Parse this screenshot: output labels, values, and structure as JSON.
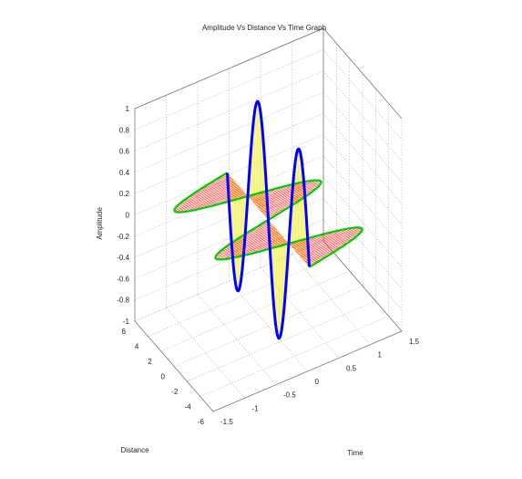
{
  "chart_data": {
    "type": "line",
    "title": "Amplitude Vs Distance Vs Time Graph",
    "xlabel": "Distance",
    "ylabel": "Time",
    "zlabel": "Amplitude",
    "xlim": [
      -6,
      6
    ],
    "ylim": [
      -1.5,
      1.5
    ],
    "zlim": [
      -1,
      1
    ],
    "x_ticks": [
      "6",
      "4",
      "2",
      "0",
      "-2",
      "-4",
      "-6"
    ],
    "y_ticks": [
      "-1.5",
      "-1",
      "-0.5",
      "0",
      "0.5",
      "1",
      "1.5"
    ],
    "z_ticks": [
      "1",
      "0.8",
      "0.6",
      "0.4",
      "0.2",
      "0",
      "-0.2",
      "-0.4",
      "-0.6",
      "-0.8",
      "-1"
    ],
    "grid": true,
    "series": [
      {
        "color": "#0000ff",
        "plane": "time = 0, distance vs amplitude",
        "function": "sin",
        "distance_range": [
          -6.28,
          6.28
        ],
        "peak_amplitude": 1
      },
      {
        "color": "#00cc00",
        "plane": "amplitude = 0, distance vs time",
        "function": "sin",
        "distance_range": [
          -6.28,
          6.28
        ],
        "peak_time": 1
      }
    ],
    "fills": [
      {
        "color": "#ffff66",
        "between": "blue wave and distance axis"
      },
      {
        "color": "#ff3333",
        "between": "green wave and distance axis"
      }
    ]
  }
}
